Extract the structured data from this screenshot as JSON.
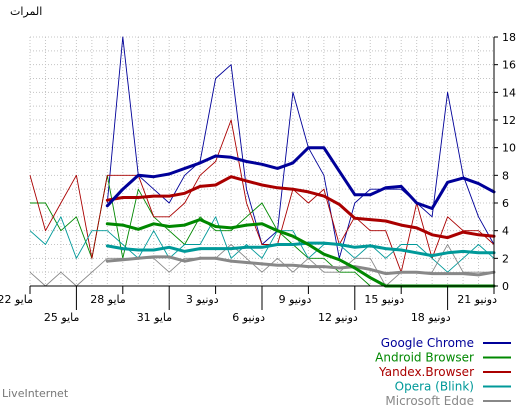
{
  "footer": "LiveInternet",
  "chart_data": {
    "type": "line",
    "ylabel": "المرات",
    "ylim": [
      0,
      18
    ],
    "yticks": [
      0,
      2,
      4,
      6,
      8,
      10,
      12,
      14,
      16,
      18
    ],
    "grid": true,
    "legend_position": "bottom-right",
    "x_date_labels": [
      {
        "label": "21 دونيو",
        "day": 0,
        "row": 1
      },
      {
        "label": "18 دونيو",
        "day": 3,
        "row": 2
      },
      {
        "label": "15 دونيو",
        "day": 6,
        "row": 1
      },
      {
        "label": "12 دونيو",
        "day": 9,
        "row": 2
      },
      {
        "label": "9 دونيو",
        "day": 12,
        "row": 1
      },
      {
        "label": "6 دونيو",
        "day": 15,
        "row": 2
      },
      {
        "label": "3 دونيو",
        "day": 18,
        "row": 1
      },
      {
        "label": "31 مايو",
        "day": 21,
        "row": 2
      },
      {
        "label": "28 مايو",
        "day": 24,
        "row": 1
      },
      {
        "label": "25 مايو",
        "day": 27,
        "row": 2
      },
      {
        "label": "22 مايو",
        "day": 30,
        "row": 1
      }
    ],
    "series": [
      {
        "name": "Google Chrome",
        "color": "#000099",
        "values": [
          3,
          5,
          8,
          14,
          5,
          6,
          7,
          7,
          7,
          6,
          2,
          8,
          10,
          14,
          4,
          3,
          7,
          16,
          15,
          9,
          8,
          6,
          7,
          8,
          18,
          6,
          null,
          null,
          null,
          null,
          null
        ],
        "trend": [
          6.8,
          7.4,
          7.8,
          7.5,
          5.6,
          6.0,
          7.2,
          7.1,
          6.6,
          6.6,
          8.3,
          10.0,
          10.0,
          8.9,
          8.5,
          8.8,
          9.0,
          9.3,
          9.4,
          8.9,
          8.5,
          8.1,
          7.9,
          8.0,
          7.0,
          5.8
        ]
      },
      {
        "name": "Android Browser",
        "color": "#008800",
        "values": [
          0,
          0,
          0,
          0,
          0,
          0,
          0,
          0,
          0,
          1,
          1,
          2,
          2,
          3,
          4,
          6,
          5,
          4,
          4,
          5,
          3,
          4,
          5,
          7,
          2,
          8,
          2,
          5,
          4,
          6,
          6
        ],
        "trend": [
          0,
          0,
          0,
          0,
          0,
          0,
          0,
          0,
          0.6,
          1.3,
          1.9,
          2.3,
          3.0,
          3.6,
          4.0,
          4.5,
          4.4,
          4.2,
          4.3,
          4.8,
          4.4,
          4.3,
          4.5,
          4.1,
          4.4,
          4.5
        ]
      },
      {
        "name": "Yandex.Browser",
        "color": "#aa0000",
        "values": [
          3,
          4,
          4,
          5,
          2,
          6,
          1,
          4,
          4,
          5,
          3,
          7,
          6,
          7,
          3,
          3,
          6,
          12,
          9,
          8,
          6,
          5,
          5,
          8,
          8,
          8,
          2,
          8,
          6,
          4,
          8
        ],
        "trend": [
          3.6,
          3.7,
          3.9,
          3.5,
          3.7,
          4.2,
          4.4,
          4.7,
          4.8,
          4.9,
          5.9,
          6.5,
          6.8,
          7.0,
          7.1,
          7.3,
          7.6,
          7.9,
          7.3,
          7.2,
          6.7,
          6.5,
          6.5,
          6.4,
          6.4,
          6.2
        ]
      },
      {
        "name": "Opera (Blink)",
        "color": "#009999",
        "values": [
          2,
          3,
          2,
          1,
          2,
          3,
          3,
          2,
          3,
          2,
          3,
          3,
          2,
          4,
          4,
          2,
          3,
          2,
          5,
          3,
          3,
          2,
          4,
          2,
          3,
          4,
          4,
          2,
          5,
          3,
          4
        ],
        "trend": [
          2.4,
          2.4,
          2.5,
          2.4,
          2.2,
          2.4,
          2.6,
          2.7,
          2.9,
          2.8,
          3.0,
          3.1,
          3.1,
          3.0,
          3.0,
          2.8,
          2.8,
          2.7,
          2.7,
          2.7,
          2.5,
          2.8,
          2.6,
          2.6,
          2.7,
          2.9
        ]
      },
      {
        "name": "Microsoft Edge",
        "color": "#888888",
        "values": [
          1,
          1,
          1,
          3,
          1,
          1,
          1,
          0,
          2,
          2,
          1,
          1,
          2,
          1,
          2,
          1,
          2,
          3,
          2,
          2,
          2,
          1,
          2,
          2,
          2,
          2,
          1,
          0,
          1,
          0,
          1
        ],
        "trend": [
          1.0,
          0.8,
          0.9,
          0.9,
          0.9,
          1.0,
          1.0,
          0.9,
          1.2,
          1.4,
          1.3,
          1.4,
          1.4,
          1.5,
          1.5,
          1.6,
          1.7,
          1.8,
          2.0,
          2.0,
          1.8,
          2.1,
          2.1,
          2.0,
          1.9,
          1.8
        ]
      }
    ]
  }
}
